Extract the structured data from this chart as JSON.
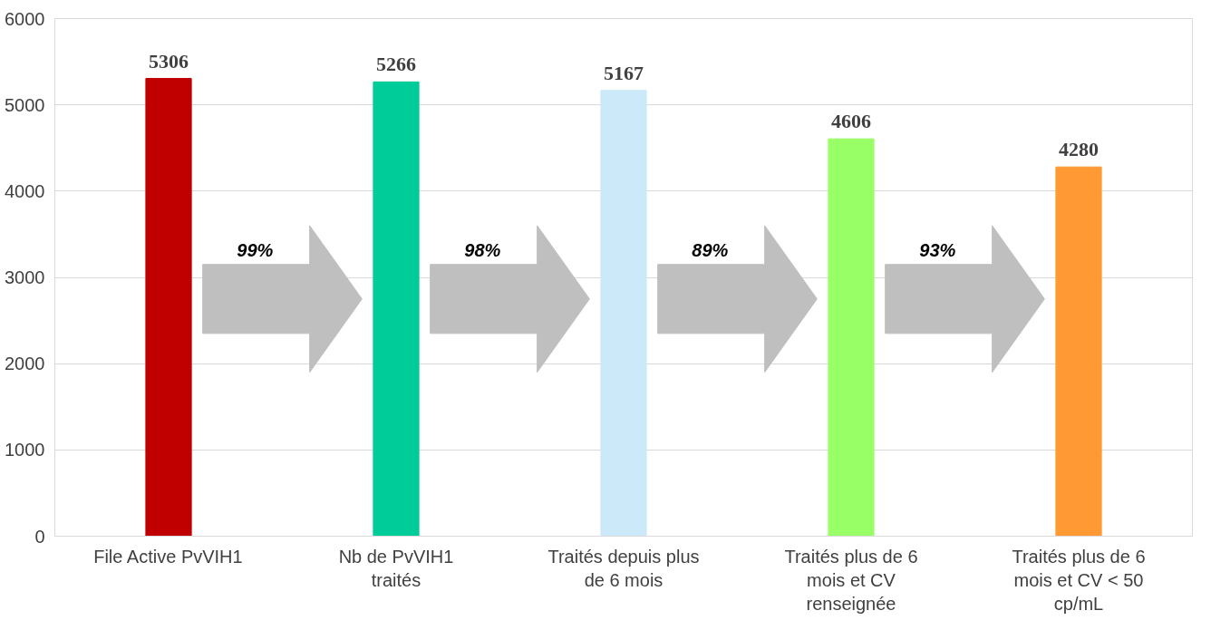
{
  "chart_data": {
    "type": "bar",
    "categories": [
      "File Active PvVIH1",
      "Nb de PvVIH1 traités",
      "Traités depuis plus de 6 mois",
      "Traités plus de 6 mois et CV renseignée",
      "Traités plus de 6 mois et CV < 50 cp/mL"
    ],
    "values": [
      5306,
      5266,
      5167,
      4606,
      4280
    ],
    "colors": [
      "#c00000",
      "#00cc99",
      "#cce9fa",
      "#99ff66",
      "#ff9933"
    ],
    "ylim": [
      0,
      6000
    ],
    "yticks": [
      0,
      1000,
      2000,
      3000,
      4000,
      5000,
      6000
    ],
    "grid": "y",
    "data_labels": true,
    "annotations": [
      "99%",
      "98%",
      "89%",
      "93%"
    ]
  }
}
